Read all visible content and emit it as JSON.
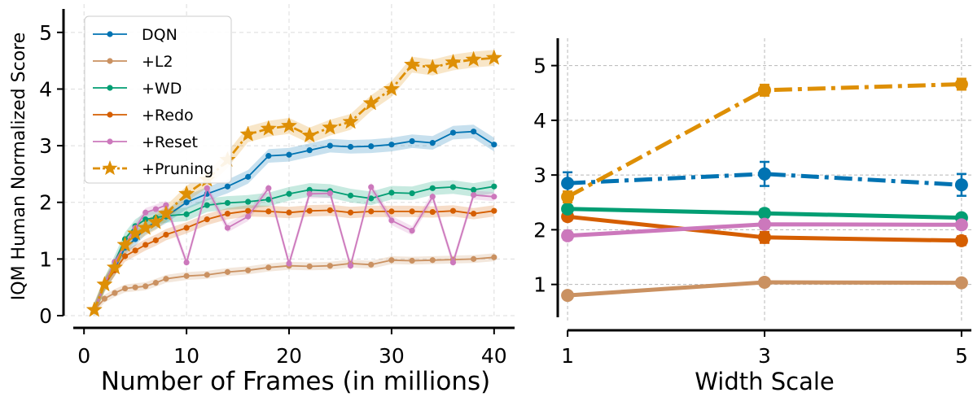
{
  "chart_data": [
    {
      "type": "line",
      "title": "",
      "xlabel": "Number of Frames (in millions)",
      "ylabel": "IQM Human Normalized Score",
      "xlim": [
        -2,
        42
      ],
      "ylim": [
        0,
        5.5
      ],
      "xticks": [
        0,
        10,
        20,
        30,
        40
      ],
      "yticks": [
        0,
        1,
        2,
        3,
        4,
        5
      ],
      "xtick_labels": [
        "0",
        "10",
        "20",
        "30",
        "40"
      ],
      "ytick_labels": [
        "0",
        "1",
        "2",
        "3",
        "4",
        "5"
      ],
      "grid": true,
      "legend_position": "top-left",
      "x": [
        1,
        2,
        3,
        4,
        5,
        6,
        7,
        8,
        10,
        12,
        14,
        16,
        18,
        20,
        22,
        24,
        26,
        28,
        30,
        32,
        34,
        36,
        38,
        40
      ],
      "series": [
        {
          "name": "DQN",
          "color": "#0173b2",
          "marker": "circle",
          "linestyle": "solid",
          "band": 0.12,
          "values": [
            0.1,
            0.55,
            0.83,
            1.2,
            1.35,
            1.55,
            1.65,
            1.75,
            2.0,
            2.15,
            2.28,
            2.45,
            2.82,
            2.84,
            2.92,
            3.0,
            2.98,
            2.99,
            3.02,
            3.08,
            3.05,
            3.23,
            3.25,
            3.02
          ]
        },
        {
          "name": "+L2",
          "color": "#ca9161",
          "marker": "circle",
          "linestyle": "solid",
          "band": 0.07,
          "values": [
            0.1,
            0.3,
            0.4,
            0.48,
            0.5,
            0.52,
            0.58,
            0.65,
            0.7,
            0.72,
            0.77,
            0.8,
            0.85,
            0.88,
            0.87,
            0.88,
            0.92,
            0.9,
            0.98,
            0.97,
            0.98,
            0.99,
            1.0,
            1.03
          ]
        },
        {
          "name": "+WD",
          "color": "#029e73",
          "marker": "circle",
          "linestyle": "solid",
          "band": 0.12,
          "values": [
            0.1,
            0.55,
            0.95,
            1.35,
            1.58,
            1.7,
            1.73,
            1.76,
            1.79,
            1.95,
            1.99,
            2.01,
            2.05,
            2.15,
            2.22,
            2.2,
            2.12,
            2.07,
            2.17,
            2.16,
            2.25,
            2.27,
            2.22,
            2.28
          ]
        },
        {
          "name": "+Redo",
          "color": "#d55e00",
          "marker": "circle",
          "linestyle": "solid",
          "band": 0.1,
          "values": [
            0.1,
            0.55,
            0.8,
            1.05,
            1.15,
            1.25,
            1.33,
            1.43,
            1.55,
            1.7,
            1.8,
            1.85,
            1.84,
            1.82,
            1.85,
            1.86,
            1.82,
            1.84,
            1.84,
            1.84,
            1.83,
            1.85,
            1.8,
            1.85
          ]
        },
        {
          "name": "+Reset",
          "color": "#cc78bc",
          "marker": "circle",
          "linestyle": "solid",
          "band": 0.08,
          "values": [
            0.1,
            0.55,
            0.95,
            1.25,
            1.55,
            1.82,
            1.88,
            1.95,
            0.94,
            2.25,
            1.55,
            1.75,
            2.25,
            0.92,
            2.15,
            2.16,
            0.88,
            2.27,
            1.68,
            1.5,
            2.1,
            0.94,
            2.13,
            2.1
          ]
        },
        {
          "name": "+Pruning",
          "color": "#de8f05",
          "marker": "star",
          "linestyle": "dashdot",
          "band": 0.14,
          "values": [
            0.1,
            0.55,
            0.85,
            1.25,
            1.45,
            1.55,
            1.65,
            1.8,
            2.15,
            2.4,
            2.75,
            3.2,
            3.3,
            3.35,
            3.18,
            3.32,
            3.42,
            3.75,
            4.0,
            4.43,
            4.38,
            4.47,
            4.52,
            4.55
          ]
        }
      ]
    },
    {
      "type": "line",
      "title": "",
      "xlabel": "Width Scale",
      "ylabel": "",
      "xlim": [
        0.9,
        5.1
      ],
      "ylim": [
        0.4,
        5.5
      ],
      "xticks": [
        1,
        3,
        5
      ],
      "yticks": [
        1,
        2,
        3,
        4,
        5
      ],
      "xtick_labels": [
        "1",
        "3",
        "5"
      ],
      "ytick_labels": [
        "1",
        "2",
        "3",
        "4",
        "5"
      ],
      "grid": true,
      "x": [
        1,
        3,
        5
      ],
      "series": [
        {
          "name": "",
          "color": "#ca9161",
          "linestyle": "solid",
          "values": [
            0.8,
            1.04,
            1.03
          ],
          "err": [
            0.02,
            0.03,
            0.03
          ]
        },
        {
          "name": "",
          "color": "#d55e00",
          "linestyle": "solid",
          "values": [
            2.24,
            1.86,
            1.8
          ],
          "err": [
            0.07,
            0.1,
            0.08
          ]
        },
        {
          "name": "",
          "color": "#029e73",
          "linestyle": "solid",
          "values": [
            2.38,
            2.3,
            2.22
          ],
          "err": [
            0.05,
            0.07,
            0.05
          ]
        },
        {
          "name": "",
          "color": "#cc78bc",
          "linestyle": "solid",
          "values": [
            1.89,
            2.1,
            2.09
          ],
          "err": [
            0.07,
            0.07,
            0.07
          ]
        },
        {
          "name": "",
          "color": "#0173b2",
          "linestyle": "dashdot",
          "values": [
            2.85,
            3.02,
            2.82
          ],
          "err": [
            0.2,
            0.22,
            0.2
          ]
        },
        {
          "name": "",
          "color": "#de8f05",
          "linestyle": "dashdot",
          "values": [
            2.6,
            4.55,
            4.66
          ],
          "err": [
            0.1,
            0.1,
            0.1
          ]
        }
      ]
    }
  ]
}
